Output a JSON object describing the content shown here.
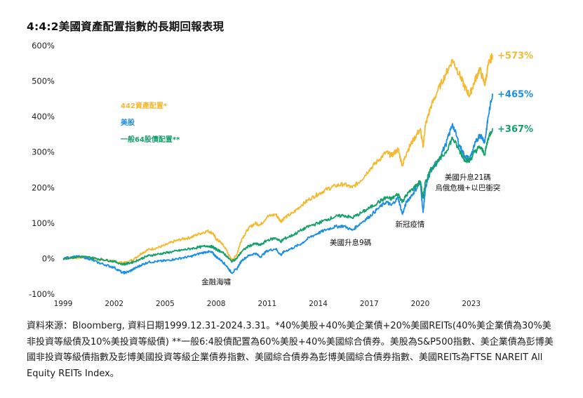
{
  "title": "4:4:2美國資產配置指數的長期回報表現",
  "chart_data": {
    "type": "line",
    "ylim": [
      -100,
      600
    ],
    "y_ticks": [
      -100,
      0,
      100,
      200,
      300,
      400,
      500,
      600
    ],
    "y_tick_labels": [
      "-100%",
      "0%",
      "100%",
      "200%",
      "300%",
      "400%",
      "500%",
      "600%"
    ],
    "x_ticks": [
      1999,
      2002,
      2005,
      2008,
      2011,
      2014,
      2017,
      2020,
      2023
    ],
    "x_tick_labels": [
      "1999",
      "2002",
      "2005",
      "2008",
      "2011",
      "2014",
      "2017",
      "2020",
      "2023"
    ],
    "xlim": [
      1999.0,
      2024.25
    ],
    "grid": false,
    "legend_position": "upper-left",
    "series": [
      {
        "name": "442資產配置*",
        "color": "#F5B82E",
        "end_label": "+573%",
        "points": [
          [
            1999.0,
            0
          ],
          [
            1999.5,
            2
          ],
          [
            2000.0,
            3
          ],
          [
            2000.5,
            2
          ],
          [
            2001.0,
            -2
          ],
          [
            2001.5,
            -5
          ],
          [
            2002.0,
            -8
          ],
          [
            2002.5,
            -12
          ],
          [
            2002.8,
            -10
          ],
          [
            2003.2,
            0
          ],
          [
            2003.6,
            15
          ],
          [
            2004.0,
            25
          ],
          [
            2004.5,
            30
          ],
          [
            2005.0,
            38
          ],
          [
            2005.5,
            48
          ],
          [
            2006.0,
            55
          ],
          [
            2006.5,
            60
          ],
          [
            2007.0,
            70
          ],
          [
            2007.5,
            78
          ],
          [
            2007.8,
            72
          ],
          [
            2008.0,
            55
          ],
          [
            2008.3,
            45
          ],
          [
            2008.6,
            25
          ],
          [
            2008.9,
            -5
          ],
          [
            2009.2,
            10
          ],
          [
            2009.5,
            55
          ],
          [
            2009.9,
            85
          ],
          [
            2010.3,
            100
          ],
          [
            2010.6,
            95
          ],
          [
            2011.0,
            118
          ],
          [
            2011.5,
            125
          ],
          [
            2011.8,
            105
          ],
          [
            2012.0,
            115
          ],
          [
            2012.5,
            128
          ],
          [
            2013.0,
            150
          ],
          [
            2013.5,
            168
          ],
          [
            2014.0,
            182
          ],
          [
            2014.5,
            195
          ],
          [
            2015.0,
            205
          ],
          [
            2015.5,
            210
          ],
          [
            2016.0,
            200
          ],
          [
            2016.5,
            220
          ],
          [
            2017.0,
            250
          ],
          [
            2017.5,
            275
          ],
          [
            2018.0,
            300
          ],
          [
            2018.3,
            290
          ],
          [
            2018.7,
            308
          ],
          [
            2018.95,
            262
          ],
          [
            2019.2,
            300
          ],
          [
            2019.6,
            335
          ],
          [
            2020.0,
            365
          ],
          [
            2020.17,
            315
          ],
          [
            2020.3,
            375
          ],
          [
            2020.6,
            425
          ],
          [
            2021.0,
            470
          ],
          [
            2021.5,
            520
          ],
          [
            2021.9,
            560
          ],
          [
            2022.3,
            520
          ],
          [
            2022.6,
            485
          ],
          [
            2022.9,
            460
          ],
          [
            2023.2,
            500
          ],
          [
            2023.5,
            535
          ],
          [
            2023.8,
            490
          ],
          [
            2024.0,
            545
          ],
          [
            2024.25,
            573
          ]
        ]
      },
      {
        "name": "美股",
        "color": "#1A8FE3",
        "end_label": "+465%",
        "points": [
          [
            1999.0,
            0
          ],
          [
            1999.5,
            5
          ],
          [
            2000.0,
            6
          ],
          [
            2000.5,
            0
          ],
          [
            2001.0,
            -10
          ],
          [
            2001.5,
            -18
          ],
          [
            2002.0,
            -25
          ],
          [
            2002.5,
            -40
          ],
          [
            2002.8,
            -38
          ],
          [
            2003.2,
            -28
          ],
          [
            2003.6,
            -18
          ],
          [
            2004.0,
            -10
          ],
          [
            2004.5,
            -8
          ],
          [
            2005.0,
            -6
          ],
          [
            2005.5,
            -2
          ],
          [
            2006.0,
            2
          ],
          [
            2006.5,
            6
          ],
          [
            2007.0,
            14
          ],
          [
            2007.5,
            20
          ],
          [
            2007.8,
            16
          ],
          [
            2008.0,
            5
          ],
          [
            2008.3,
            -5
          ],
          [
            2008.6,
            -20
          ],
          [
            2008.9,
            -40
          ],
          [
            2009.2,
            -30
          ],
          [
            2009.5,
            -5
          ],
          [
            2009.9,
            8
          ],
          [
            2010.3,
            15
          ],
          [
            2010.6,
            5
          ],
          [
            2011.0,
            22
          ],
          [
            2011.5,
            28
          ],
          [
            2011.8,
            10
          ],
          [
            2012.0,
            20
          ],
          [
            2012.5,
            30
          ],
          [
            2013.0,
            42
          ],
          [
            2013.5,
            60
          ],
          [
            2014.0,
            72
          ],
          [
            2014.5,
            82
          ],
          [
            2015.0,
            90
          ],
          [
            2015.5,
            92
          ],
          [
            2016.0,
            80
          ],
          [
            2016.5,
            100
          ],
          [
            2017.0,
            118
          ],
          [
            2017.5,
            140
          ],
          [
            2018.0,
            160
          ],
          [
            2018.3,
            150
          ],
          [
            2018.7,
            172
          ],
          [
            2018.95,
            125
          ],
          [
            2019.2,
            160
          ],
          [
            2019.6,
            185
          ],
          [
            2020.0,
            215
          ],
          [
            2020.17,
            130
          ],
          [
            2020.3,
            195
          ],
          [
            2020.6,
            245
          ],
          [
            2021.0,
            275
          ],
          [
            2021.5,
            320
          ],
          [
            2021.9,
            380
          ],
          [
            2022.3,
            320
          ],
          [
            2022.6,
            290
          ],
          [
            2022.9,
            280
          ],
          [
            2023.2,
            320
          ],
          [
            2023.5,
            350
          ],
          [
            2023.8,
            330
          ],
          [
            2024.0,
            400
          ],
          [
            2024.25,
            465
          ]
        ]
      },
      {
        "name": "一般64股債配置**",
        "color": "#14A06A",
        "end_label": "+367%",
        "points": [
          [
            1999.0,
            0
          ],
          [
            1999.5,
            3
          ],
          [
            2000.0,
            5
          ],
          [
            2000.5,
            4
          ],
          [
            2001.0,
            0
          ],
          [
            2001.5,
            -4
          ],
          [
            2002.0,
            -8
          ],
          [
            2002.5,
            -16
          ],
          [
            2002.8,
            -14
          ],
          [
            2003.2,
            -8
          ],
          [
            2003.6,
            0
          ],
          [
            2004.0,
            8
          ],
          [
            2004.5,
            12
          ],
          [
            2005.0,
            16
          ],
          [
            2005.5,
            20
          ],
          [
            2006.0,
            24
          ],
          [
            2006.5,
            28
          ],
          [
            2007.0,
            32
          ],
          [
            2007.5,
            36
          ],
          [
            2007.8,
            33
          ],
          [
            2008.0,
            26
          ],
          [
            2008.3,
            20
          ],
          [
            2008.6,
            8
          ],
          [
            2008.9,
            -8
          ],
          [
            2009.2,
            0
          ],
          [
            2009.5,
            20
          ],
          [
            2009.9,
            35
          ],
          [
            2010.3,
            42
          ],
          [
            2010.6,
            38
          ],
          [
            2011.0,
            52
          ],
          [
            2011.5,
            58
          ],
          [
            2011.8,
            48
          ],
          [
            2012.0,
            56
          ],
          [
            2012.5,
            66
          ],
          [
            2013.0,
            80
          ],
          [
            2013.5,
            92
          ],
          [
            2014.0,
            100
          ],
          [
            2014.5,
            110
          ],
          [
            2015.0,
            118
          ],
          [
            2015.5,
            122
          ],
          [
            2016.0,
            115
          ],
          [
            2016.5,
            128
          ],
          [
            2017.0,
            142
          ],
          [
            2017.5,
            158
          ],
          [
            2018.0,
            172
          ],
          [
            2018.3,
            168
          ],
          [
            2018.7,
            182
          ],
          [
            2018.95,
            160
          ],
          [
            2019.2,
            180
          ],
          [
            2019.6,
            198
          ],
          [
            2020.0,
            218
          ],
          [
            2020.17,
            170
          ],
          [
            2020.3,
            215
          ],
          [
            2020.6,
            250
          ],
          [
            2021.0,
            270
          ],
          [
            2021.5,
            300
          ],
          [
            2021.9,
            340
          ],
          [
            2022.3,
            305
          ],
          [
            2022.6,
            280
          ],
          [
            2022.9,
            275
          ],
          [
            2023.2,
            300
          ],
          [
            2023.5,
            315
          ],
          [
            2023.8,
            295
          ],
          [
            2024.0,
            340
          ],
          [
            2024.25,
            367
          ]
        ]
      }
    ],
    "annotations": [
      {
        "text_lines": [
          "金融海嘯"
        ],
        "x": 2008.0,
        "y": -72
      },
      {
        "text_lines": [
          "美國升息9碼"
        ],
        "x": 2015.9,
        "y": 38
      },
      {
        "text_lines": [
          "新冠疫情"
        ],
        "x": 2019.4,
        "y": 90
      },
      {
        "text_lines": [
          "美國升息21碼",
          "烏俄危機+以巴衝突"
        ],
        "x": 2022.8,
        "y": 222
      }
    ]
  },
  "source_note": "資料來源：Bloomberg, 資料日期1999.12.31-2024.3.31。*40%美股+40%美企業債+20%美國REITs(40%美企業債為30%美非投資等級債及10%美投資等級債) **一般6:4股債配置為60%美股+40%美國綜合債券。美股為S&P500指數、美企業債為彭博美國非投資等級債指數及彭博美國投資等級企業債券指數、美國綜合債券為彭博美國綜合債券指數、美國REITs為FTSE NAREIT All Equity REITs Index。"
}
